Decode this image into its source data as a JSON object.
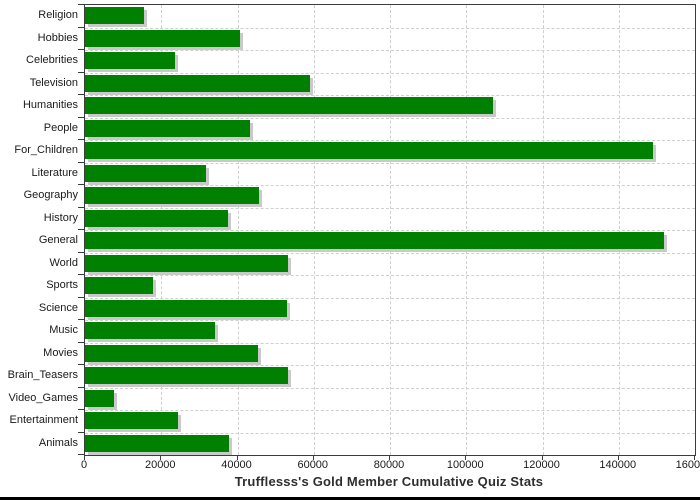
{
  "chart_data": {
    "type": "bar",
    "orientation": "horizontal",
    "title": "Trufflesss's Gold Member Cumulative Quiz Stats",
    "categories": [
      "Religion",
      "Hobbies",
      "Celebrities",
      "Television",
      "Humanities",
      "People",
      "For_Children",
      "Literature",
      "Geography",
      "History",
      "General",
      "World",
      "Sports",
      "Science",
      "Music",
      "Movies",
      "Brain_Teasers",
      "Video_Games",
      "Entertainment",
      "Animals"
    ],
    "values": [
      15500,
      40700,
      23700,
      59000,
      107000,
      43300,
      148900,
      31700,
      45700,
      37400,
      151800,
      53300,
      17900,
      52900,
      34100,
      45300,
      53200,
      7700,
      24300,
      37900
    ],
    "xlabel": "",
    "ylabel": "",
    "xlim": [
      0,
      160000
    ],
    "xticks": [
      0,
      20000,
      40000,
      60000,
      80000,
      100000,
      120000,
      140000,
      160000
    ],
    "xtick_labels": [
      "0",
      "20000",
      "40000",
      "60000",
      "80000",
      "100000",
      "120000",
      "140000",
      "160000"
    ],
    "grid": true,
    "grid_style": "dashed",
    "legend": false,
    "colors": {
      "bar": "#008000",
      "bar_shadow": "#c9c9c9",
      "gridline": "#cfcfcf",
      "axis_frame": "#3c3c3c",
      "tick_label": "#1a1a1a",
      "title": "#2e2e2e",
      "background": "#ffffff",
      "bottom_border": "#000000"
    }
  }
}
